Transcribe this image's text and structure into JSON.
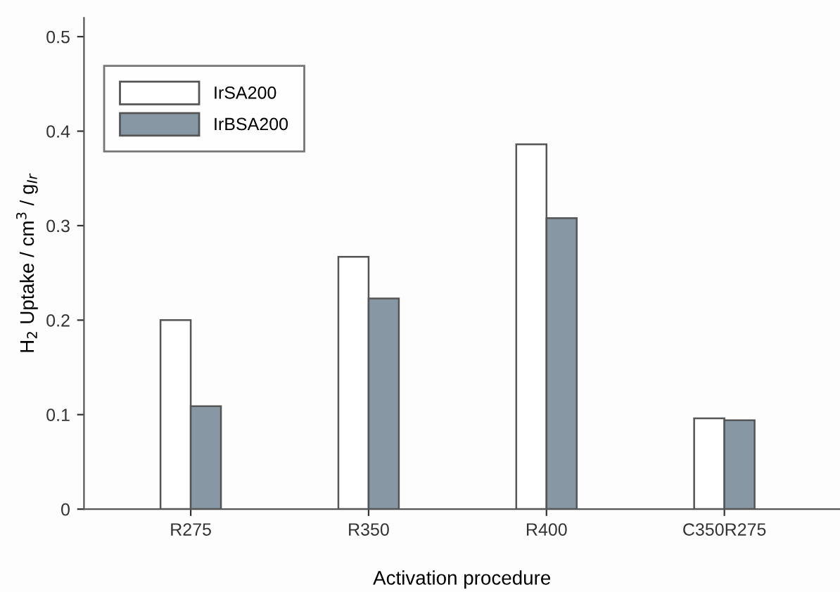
{
  "chart_data": {
    "type": "bar",
    "xlabel": "Activation procedure",
    "ylabel": "H$_{2}$ Uptake / cm$^{3}$ / g$_{Ir}$",
    "categories": [
      "R275",
      "R350",
      "R400",
      "C350R275"
    ],
    "series": [
      {
        "name": "IrSA200",
        "color": "#ffffff",
        "values": [
          0.2,
          0.267,
          0.386,
          0.096
        ]
      },
      {
        "name": "IrBSA200",
        "color": "#8797a3",
        "values": [
          0.109,
          0.223,
          0.308,
          0.094
        ]
      }
    ],
    "ylim": [
      0,
      0.52
    ],
    "yticks": [
      0,
      0.1,
      0.2,
      0.3,
      0.4,
      0.5
    ],
    "grid": false,
    "legend": "top left"
  }
}
